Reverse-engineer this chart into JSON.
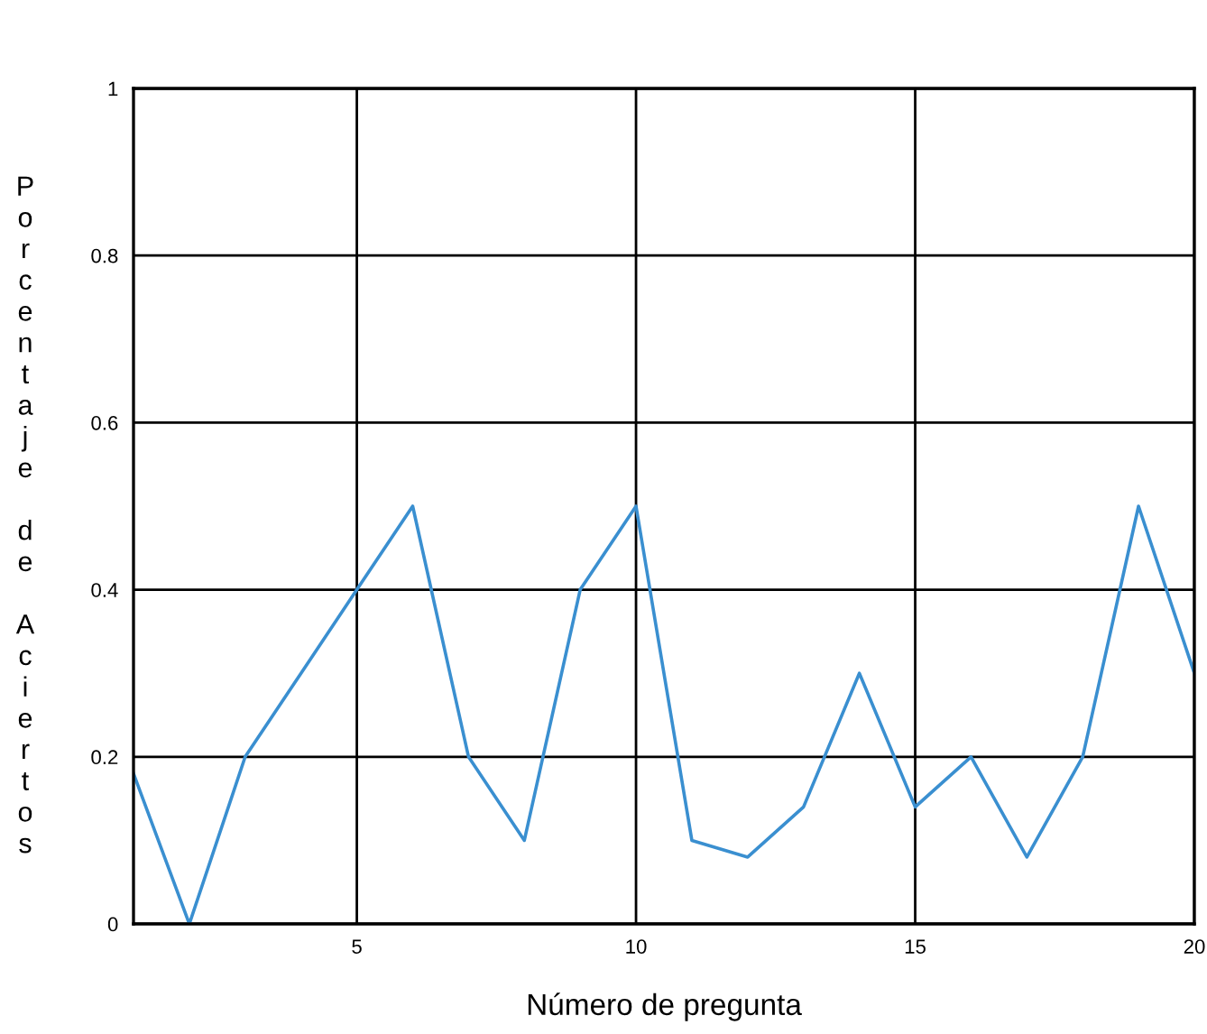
{
  "chart_data": {
    "type": "line",
    "xlabel": "Número de pregunta",
    "ylabel": "Porcentaje de Aciertos",
    "x": [
      1,
      2,
      3,
      4,
      5,
      6,
      7,
      8,
      9,
      10,
      11,
      12,
      13,
      14,
      15,
      16,
      17,
      18,
      19,
      20
    ],
    "series": [
      {
        "color": "#3a8fd0",
        "values": [
          0.18,
          0,
          0.2,
          0.3,
          0.4,
          0.5,
          0.2,
          0.1,
          0.4,
          0.5,
          0.1,
          0.08,
          0.14,
          0.3,
          0.14,
          0.2,
          0.08,
          0.2,
          0.5,
          0.3
        ]
      }
    ],
    "xlim": [
      1,
      20
    ],
    "ylim": [
      0,
      1
    ],
    "xticks": [
      5,
      10,
      15,
      20
    ],
    "yticks": [
      0,
      0.2,
      0.4,
      0.6,
      0.8,
      1
    ],
    "grid": true,
    "marker": "none",
    "line_style": "solid"
  }
}
